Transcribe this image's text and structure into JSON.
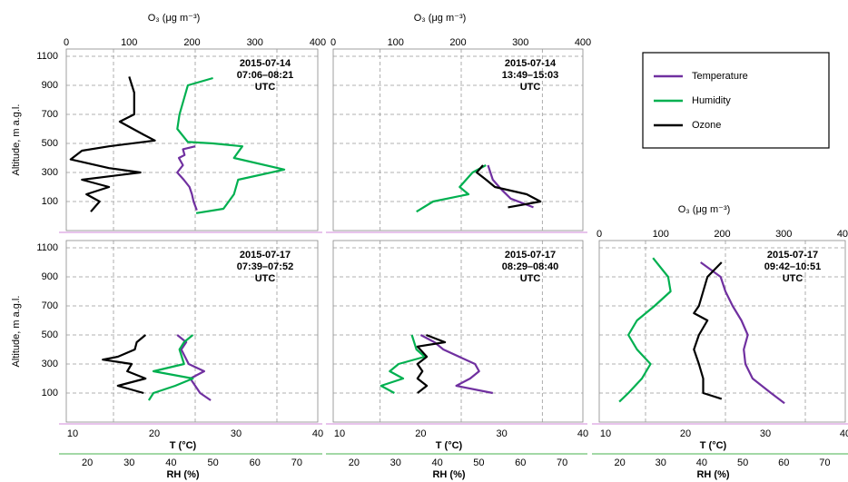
{
  "chart_data": [
    {
      "type": "line",
      "annotation": [
        "2015-07-14",
        "07:06–08:21",
        "UTC"
      ],
      "ylabel": "Altitude, m a.g.l.",
      "ylim": [
        -100,
        1150
      ],
      "yticks": [
        100,
        300,
        500,
        700,
        900,
        1100
      ],
      "ytick_labels": true,
      "o3_label": "O₃ (μg m⁻³)",
      "o3lim": [
        0,
        400
      ],
      "o3ticks": [
        0,
        100,
        200,
        300,
        400
      ],
      "tlim": [
        10,
        40
      ],
      "rhlim": [
        15,
        75
      ],
      "t_grid": [
        15,
        25,
        35
      ],
      "series": [
        {
          "name": "Temperature",
          "color": "#7030a0",
          "axis": "t",
          "x": [
            25.0,
            23.5,
            23.7,
            23.0,
            23.5,
            22.8,
            23.6,
            24.3,
            24.6,
            24.8,
            25.2
          ],
          "y": [
            480,
            460,
            420,
            400,
            350,
            300,
            250,
            200,
            150,
            100,
            40
          ]
        },
        {
          "name": "Humidity",
          "color": "#00b050",
          "axis": "rh",
          "x": [
            50,
            44,
            43,
            42,
            41.5,
            44,
            50,
            57,
            55,
            67,
            56,
            55,
            52.5,
            46
          ],
          "y": [
            950,
            900,
            800,
            700,
            600,
            510,
            500,
            480,
            400,
            320,
            250,
            150,
            50,
            20
          ]
        },
        {
          "name": "Ozone",
          "color": "#000000",
          "axis": "o3",
          "x": [
            100,
            108,
            108,
            85,
            123,
            141,
            68,
            25,
            7,
            68,
            118,
            25,
            68,
            32,
            53,
            39
          ],
          "y": [
            960,
            850,
            700,
            650,
            560,
            520,
            480,
            450,
            390,
            330,
            300,
            250,
            200,
            150,
            100,
            30
          ]
        }
      ]
    },
    {
      "type": "line",
      "annotation": [
        "2015-07-14",
        "13:49–15:03",
        "UTC"
      ],
      "ylim": [
        -100,
        1150
      ],
      "yticks": [
        100,
        300,
        500,
        700,
        900,
        1100
      ],
      "ytick_labels": false,
      "o3_label": "O₃ (μg m⁻³)",
      "o3lim": [
        0,
        400
      ],
      "o3ticks": [
        0,
        100,
        200,
        300,
        400
      ],
      "tlim": [
        10,
        40
      ],
      "rhlim": [
        15,
        75
      ],
      "t_grid": [
        15,
        25,
        35
      ],
      "series": [
        {
          "color": "#7030a0",
          "axis": "t",
          "x": [
            28.3,
            28.9,
            30.0,
            31.1,
            33.9
          ],
          "y": [
            350,
            250,
            180,
            120,
            60
          ]
        },
        {
          "color": "#00b050",
          "axis": "rh",
          "x": [
            51.7,
            48.5,
            45.4,
            47.5,
            39,
            35
          ],
          "y": [
            350,
            300,
            200,
            150,
            100,
            30
          ]
        },
        {
          "color": "#000000",
          "axis": "o3",
          "x": [
            240,
            230,
            245,
            259,
            310,
            332,
            280
          ],
          "y": [
            350,
            300,
            250,
            200,
            150,
            100,
            60
          ]
        }
      ]
    },
    {
      "type": "line",
      "annotation": [
        "2015-07-17",
        "07:39–07:52",
        "UTC"
      ],
      "ylabel": "Altitude, m a.g.l.",
      "ylim": [
        -100,
        1150
      ],
      "yticks": [
        100,
        300,
        500,
        700,
        900,
        1100
      ],
      "ytick_labels": true,
      "o3lim": [
        0,
        400
      ],
      "t_label": "T (°C)",
      "tlim": [
        10,
        40
      ],
      "tticks": [
        10,
        20,
        30,
        40
      ],
      "rh_label": "RH (%)",
      "rhlim": [
        15,
        75
      ],
      "rhticks": [
        20,
        30,
        40,
        50,
        60,
        70
      ],
      "t_grid": [
        15,
        25,
        35
      ],
      "series": [
        {
          "color": "#7030a0",
          "axis": "t",
          "x": [
            22.8,
            23.9,
            23.3,
            24.2,
            26.1,
            24.4,
            25.6,
            26.9
          ],
          "y": [
            500,
            450,
            400,
            300,
            250,
            200,
            100,
            50
          ]
        },
        {
          "color": "#00b050",
          "axis": "rh",
          "x": [
            45.2,
            43.1,
            42,
            43.1,
            35.8,
            45.2,
            41,
            35.8,
            34.7
          ],
          "y": [
            500,
            450,
            400,
            300,
            250,
            200,
            150,
            100,
            50
          ]
        },
        {
          "color": "#000000",
          "axis": "o3",
          "x": [
            126,
            112,
            109,
            82,
            58,
            104,
            97,
            126,
            82,
            123
          ],
          "y": [
            500,
            450,
            400,
            350,
            330,
            300,
            250,
            200,
            150,
            100
          ]
        }
      ]
    },
    {
      "type": "line",
      "annotation": [
        "2015-07-17",
        "08:29–08:40",
        "UTC"
      ],
      "ylim": [
        -100,
        1150
      ],
      "yticks": [
        100,
        300,
        500,
        700,
        900,
        1100
      ],
      "ytick_labels": false,
      "o3lim": [
        0,
        400
      ],
      "t_label": "T (°C)",
      "tlim": [
        10,
        40
      ],
      "tticks": [
        10,
        20,
        30,
        40
      ],
      "rh_label": "RH (%)",
      "rhlim": [
        15,
        75
      ],
      "rhticks": [
        20,
        30,
        40,
        50,
        60,
        70
      ],
      "t_grid": [
        15,
        25,
        35
      ],
      "series": [
        {
          "color": "#7030a0",
          "axis": "t",
          "x": [
            20,
            21.7,
            22.8,
            26.7,
            27.2,
            26.1,
            24.4,
            28.9
          ],
          "y": [
            500,
            450,
            400,
            300,
            250,
            200,
            150,
            100
          ]
        },
        {
          "color": "#00b050",
          "axis": "rh",
          "x": [
            33.9,
            35,
            37,
            30.7,
            28.6,
            31.8,
            26.5,
            29.7
          ],
          "y": [
            500,
            400,
            350,
            300,
            250,
            200,
            150,
            100
          ]
        },
        {
          "color": "#000000",
          "axis": "o3",
          "x": [
            149,
            179,
            135,
            150,
            135,
            143,
            135,
            150,
            135
          ],
          "y": [
            500,
            450,
            420,
            350,
            300,
            250,
            200,
            150,
            100
          ]
        }
      ]
    },
    {
      "type": "line",
      "annotation": [
        "2015-07-17",
        "09:42–10:51",
        "UTC"
      ],
      "ylim": [
        -100,
        1150
      ],
      "yticks": [
        100,
        300,
        500,
        700,
        900,
        1100
      ],
      "ytick_labels": false,
      "o3_label": "O₃ (μg m⁻³)",
      "o3lim": [
        0,
        400
      ],
      "o3ticks": [
        0,
        100,
        200,
        300,
        400
      ],
      "t_label": "T (°C)",
      "tlim": [
        10,
        40
      ],
      "tticks": [
        10,
        20,
        30,
        40
      ],
      "rh_label": "RH (%)",
      "rhlim": [
        15,
        75
      ],
      "rhticks": [
        20,
        30,
        40,
        50,
        60,
        70
      ],
      "t_grid": [
        15,
        25,
        35
      ],
      "series": [
        {
          "color": "#7030a0",
          "axis": "t",
          "x": [
            21.9,
            24.4,
            25,
            25.9,
            27,
            27.8,
            27.3,
            27.5,
            28.4,
            30.7,
            32.4
          ],
          "y": [
            1000,
            900,
            800,
            700,
            600,
            500,
            400,
            300,
            200,
            100,
            30
          ]
        },
        {
          "color": "#00b050",
          "axis": "rh",
          "x": [
            28.1,
            31.8,
            32.4,
            28.5,
            24.2,
            22.1,
            24.2,
            27.5,
            25.4,
            22.1,
            19.9
          ],
          "y": [
            1030,
            900,
            800,
            700,
            600,
            500,
            400,
            300,
            200,
            100,
            40
          ]
        },
        {
          "color": "#000000",
          "axis": "o3",
          "x": [
            199,
            176,
            169,
            162,
            154,
            176,
            162,
            154,
            162,
            169,
            169,
            199
          ],
          "y": [
            1000,
            900,
            800,
            700,
            650,
            600,
            500,
            400,
            300,
            200,
            100,
            60
          ]
        }
      ]
    }
  ]
}
